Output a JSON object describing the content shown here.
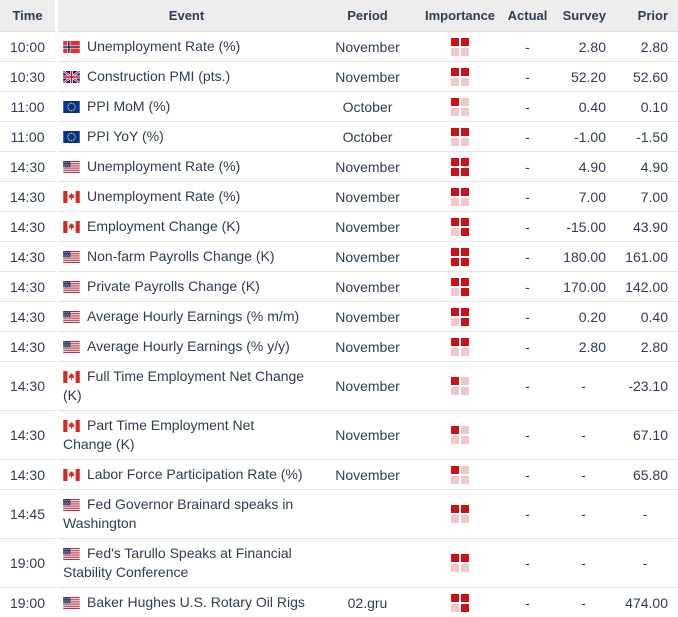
{
  "colors": {
    "text": "#2e3d54",
    "importance_high": "#cb1117",
    "importance_low": "#f0c8cc",
    "header_bg": "#ededed",
    "row_border": "#e4e4e4"
  },
  "table": {
    "columns": [
      {
        "key": "time",
        "label": "Time"
      },
      {
        "key": "event",
        "label": "Event"
      },
      {
        "key": "period",
        "label": "Period"
      },
      {
        "key": "importance",
        "label": "Importance"
      },
      {
        "key": "actual",
        "label": "Actual"
      },
      {
        "key": "survey",
        "label": "Survey"
      },
      {
        "key": "prior",
        "label": "Prior"
      }
    ],
    "rows": [
      {
        "time": "10:00",
        "flag": "norway",
        "event": "Unemployment Rate (%)",
        "period": "November",
        "importance": 2,
        "actual": "-",
        "survey": "2.80",
        "prior": "2.80"
      },
      {
        "time": "10:30",
        "flag": "uk",
        "event": "Construction PMI (pts.)",
        "period": "November",
        "importance": 2,
        "actual": "-",
        "survey": "52.20",
        "prior": "52.60"
      },
      {
        "time": "11:00",
        "flag": "eu",
        "event": "PPI MoM (%)",
        "period": "October",
        "importance": 1,
        "actual": "-",
        "survey": "0.40",
        "prior": "0.10"
      },
      {
        "time": "11:00",
        "flag": "eu",
        "event": "PPI YoY (%)",
        "period": "October",
        "importance": 2,
        "actual": "-",
        "survey": "-1.00",
        "prior": "-1.50"
      },
      {
        "time": "14:30",
        "flag": "us",
        "event": "Unemployment Rate (%)",
        "period": "November",
        "importance": 4,
        "actual": "-",
        "survey": "4.90",
        "prior": "4.90"
      },
      {
        "time": "14:30",
        "flag": "canada",
        "event": "Unemployment Rate (%)",
        "period": "November",
        "importance": 2,
        "actual": "-",
        "survey": "7.00",
        "prior": "7.00"
      },
      {
        "time": "14:30",
        "flag": "canada",
        "event": "Employment Change (K)",
        "period": "November",
        "importance": 3,
        "actual": "-",
        "survey": "-15.00",
        "prior": "43.90"
      },
      {
        "time": "14:30",
        "flag": "us",
        "event": "Non-farm Payrolls Change (K)",
        "period": "November",
        "importance": 4,
        "actual": "-",
        "survey": "180.00",
        "prior": "161.00"
      },
      {
        "time": "14:30",
        "flag": "us",
        "event": "Private Payrolls Change (K)",
        "period": "November",
        "importance": 3,
        "actual": "-",
        "survey": "170.00",
        "prior": "142.00"
      },
      {
        "time": "14:30",
        "flag": "us",
        "event": "Average Hourly Earnings (% m/m)",
        "period": "November",
        "importance": 3,
        "actual": "-",
        "survey": "0.20",
        "prior": "0.40"
      },
      {
        "time": "14:30",
        "flag": "us",
        "event": "Average Hourly Earnings (% y/y)",
        "period": "November",
        "importance": 2,
        "actual": "-",
        "survey": "2.80",
        "prior": "2.80"
      },
      {
        "time": "14:30",
        "flag": "canada",
        "event": "Full Time Employment Net Change (K)",
        "period": "November",
        "importance": 1,
        "actual": "-",
        "survey": "-",
        "prior": "-23.10"
      },
      {
        "time": "14:30",
        "flag": "canada",
        "event": "Part Time Employment Net Change (K)",
        "period": "November",
        "importance": 1,
        "actual": "-",
        "survey": "-",
        "prior": "67.10"
      },
      {
        "time": "14:30",
        "flag": "canada",
        "event": "Labor Force Participation Rate (%)",
        "period": "November",
        "importance": 1,
        "actual": "-",
        "survey": "-",
        "prior": "65.80"
      },
      {
        "time": "14:45",
        "flag": "us",
        "event": "Fed Governor Brainard speaks in Washington",
        "period": "",
        "importance": 2,
        "actual": "-",
        "survey": "-",
        "prior": "-"
      },
      {
        "time": "19:00",
        "flag": "us",
        "event": "Fed's Tarullo Speaks at Financial Stability Conference",
        "period": "",
        "importance": 2,
        "actual": "-",
        "survey": "-",
        "prior": "-"
      },
      {
        "time": "19:00",
        "flag": "us",
        "event": "Baker Hughes U.S. Rotary Oil Rigs",
        "period": "02.gru",
        "importance": 3,
        "actual": "-",
        "survey": "-",
        "prior": "474.00"
      }
    ]
  }
}
